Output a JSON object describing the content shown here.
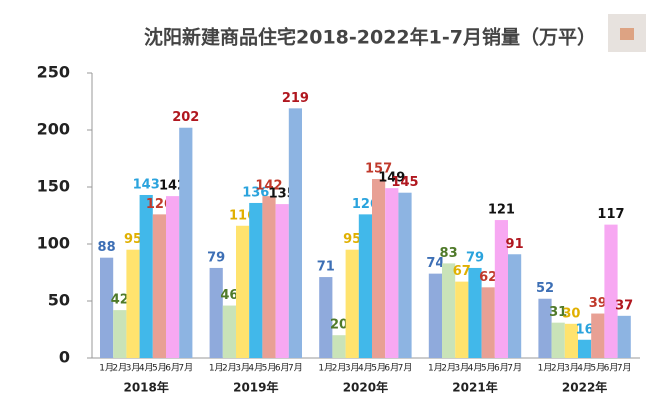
{
  "chart_data": {
    "type": "grouped-bar",
    "title": "沈阳新建商品住宅2018-2022年1-7月销量（万平）",
    "categories": [
      "2018年",
      "2019年",
      "2020年",
      "2021年",
      "2022年"
    ],
    "series": [
      {
        "name": "1月",
        "color": "#8faadc",
        "values": [
          88,
          79,
          71,
          74,
          52
        ]
      },
      {
        "name": "2月",
        "color": "#c9e3b8",
        "values": [
          42,
          46,
          20,
          83,
          31
        ]
      },
      {
        "name": "3月",
        "color": "#ffe36e",
        "values": [
          95,
          116,
          95,
          67,
          30
        ]
      },
      {
        "name": "4月",
        "color": "#41b8ea",
        "values": [
          143,
          136,
          126,
          79,
          16
        ]
      },
      {
        "name": "5月",
        "color": "#e8a094",
        "values": [
          126,
          142,
          157,
          62,
          39
        ]
      },
      {
        "name": "6月",
        "color": "#f7a8f2",
        "values": [
          142,
          135,
          149,
          121,
          117
        ]
      },
      {
        "name": "7月",
        "color": "#8db4e2",
        "values": [
          202,
          219,
          145,
          91,
          37
        ]
      }
    ],
    "ylim": [
      0,
      250
    ],
    "yticks": [
      0,
      50,
      100,
      150,
      200,
      250
    ]
  }
}
